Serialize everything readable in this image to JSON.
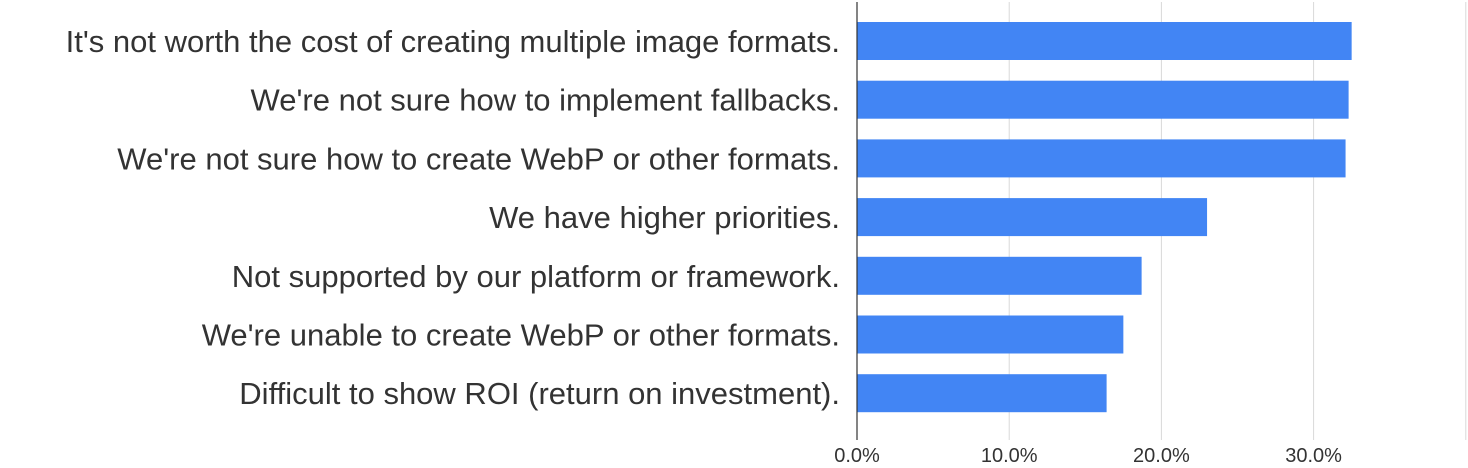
{
  "chart_data": {
    "type": "bar",
    "orientation": "horizontal",
    "categories": [
      "It's not worth the cost of creating multiple image formats.",
      "We're not sure how to implement fallbacks.",
      "We're not sure how to create WebP or other formats.",
      "We have higher priorities.",
      "Not supported by our platform or framework.",
      "We're unable to create WebP or other formats.",
      "Difficult to show ROI (return on investment)."
    ],
    "values": [
      32.5,
      32.3,
      32.1,
      23.0,
      18.7,
      17.5,
      16.4
    ],
    "xlim": [
      0,
      40
    ],
    "x_ticks": [
      0,
      10,
      20,
      30,
      40
    ],
    "x_tick_labels": [
      "0.0%",
      "10.0%",
      "20.0%",
      "30.0%",
      ""
    ],
    "grid": true,
    "bar_color": "#4285f4",
    "title": "",
    "xlabel": "",
    "ylabel": ""
  }
}
